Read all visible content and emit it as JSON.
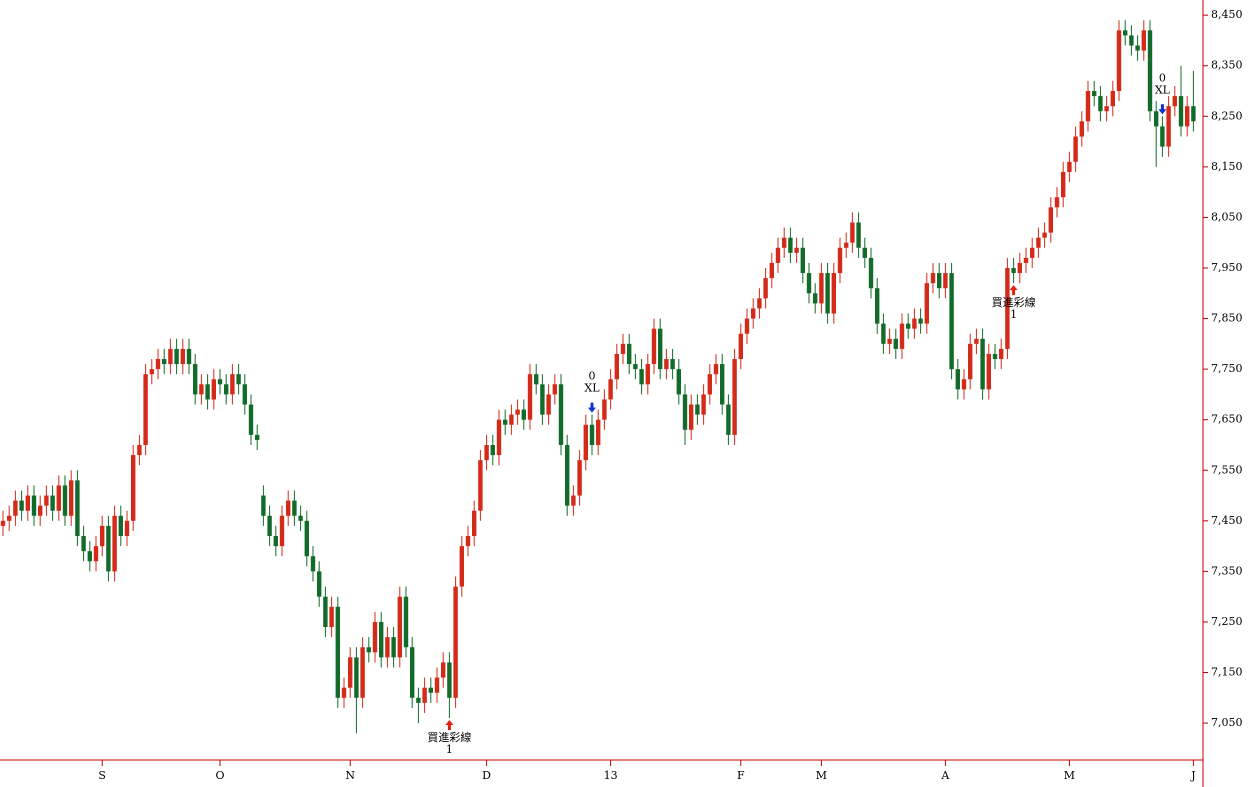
{
  "chart_data": {
    "type": "candlestick",
    "up_color": "#d42a1a",
    "down_color": "#136b2b",
    "ylim": [
      6977,
      8480
    ],
    "yticks": [
      {
        "value": 7050,
        "label": "7,050"
      },
      {
        "value": 7150,
        "label": "7,150"
      },
      {
        "value": 7250,
        "label": "7,250"
      },
      {
        "value": 7350,
        "label": "7,350"
      },
      {
        "value": 7450,
        "label": "7,450"
      },
      {
        "value": 7550,
        "label": "7,550"
      },
      {
        "value": 7650,
        "label": "7,650"
      },
      {
        "value": 7750,
        "label": "7,750"
      },
      {
        "value": 7850,
        "label": "7,850"
      },
      {
        "value": 7950,
        "label": "7,950"
      },
      {
        "value": 8050,
        "label": "8,050"
      },
      {
        "value": 8150,
        "label": "8,150"
      },
      {
        "value": 8250,
        "label": "8,250"
      },
      {
        "value": 8350,
        "label": "8,350"
      },
      {
        "value": 8450,
        "label": "8,450"
      }
    ],
    "categories": [
      null,
      null,
      null,
      null,
      null,
      null,
      null,
      null,
      null,
      null,
      null,
      null,
      null,
      null,
      null,
      null,
      "S",
      null,
      null,
      null,
      null,
      null,
      null,
      null,
      null,
      null,
      null,
      null,
      null,
      null,
      null,
      null,
      null,
      null,
      null,
      "O",
      null,
      null,
      null,
      null,
      null,
      null,
      null,
      null,
      null,
      null,
      null,
      null,
      null,
      null,
      null,
      null,
      null,
      null,
      null,
      null,
      "N",
      null,
      null,
      null,
      null,
      null,
      null,
      null,
      null,
      null,
      null,
      null,
      null,
      null,
      null,
      null,
      null,
      null,
      null,
      null,
      null,
      null,
      "D",
      null,
      null,
      null,
      null,
      null,
      null,
      null,
      null,
      null,
      null,
      null,
      null,
      null,
      null,
      null,
      null,
      null,
      null,
      null,
      "13",
      null,
      null,
      null,
      null,
      null,
      null,
      null,
      null,
      null,
      null,
      null,
      null,
      null,
      null,
      null,
      null,
      null,
      null,
      null,
      null,
      "F",
      null,
      null,
      null,
      null,
      null,
      null,
      null,
      null,
      null,
      null,
      null,
      null,
      "M",
      null,
      null,
      null,
      null,
      null,
      null,
      null,
      null,
      null,
      null,
      null,
      null,
      null,
      null,
      null,
      null,
      null,
      null,
      null,
      "A",
      null,
      null,
      null,
      null,
      null,
      null,
      null,
      null,
      null,
      null,
      null,
      null,
      null,
      null,
      null,
      null,
      null,
      null,
      null,
      "M",
      null,
      null,
      null,
      null,
      null,
      null,
      null,
      null,
      null,
      null,
      null,
      null,
      null,
      null,
      null,
      null,
      null,
      null,
      null,
      "J"
    ],
    "open": [
      7440,
      7450,
      7460,
      7490,
      7470,
      7500,
      7460,
      7480,
      7500,
      7470,
      7520,
      7460,
      7530,
      7420,
      7390,
      7370,
      7400,
      7440,
      7350,
      7460,
      7420,
      7450,
      7580,
      7600,
      7740,
      7750,
      7770,
      7760,
      7790,
      7760,
      7790,
      7760,
      7700,
      7720,
      7690,
      7730,
      7720,
      7700,
      7740,
      7720,
      7680,
      7620,
      7500,
      7460,
      7420,
      7400,
      7460,
      7490,
      7460,
      7450,
      7380,
      7350,
      7300,
      7240,
      7280,
      7100,
      7120,
      7180,
      7100,
      7200,
      7190,
      7250,
      7180,
      7220,
      7180,
      7300,
      7200,
      7100,
      7090,
      7120,
      7110,
      7140,
      7170,
      7100,
      7320,
      7400,
      7420,
      7470,
      7570,
      7600,
      7580,
      7650,
      7640,
      7660,
      7670,
      7650,
      7740,
      7720,
      7660,
      7700,
      7720,
      7600,
      7480,
      7500,
      7570,
      7640,
      7600,
      7650,
      7690,
      7730,
      7780,
      7800,
      7760,
      7750,
      7720,
      7760,
      7830,
      7750,
      7770,
      7750,
      7700,
      7630,
      7680,
      7660,
      7700,
      7740,
      7760,
      7680,
      7620,
      7770,
      7820,
      7850,
      7870,
      7890,
      7930,
      7960,
      7990,
      8010,
      7980,
      7990,
      7940,
      7900,
      7880,
      7940,
      7860,
      7940,
      7990,
      8000,
      8040,
      7990,
      7970,
      7910,
      7840,
      7800,
      7810,
      7790,
      7840,
      7830,
      7850,
      7840,
      7920,
      7940,
      7910,
      7940,
      7750,
      7710,
      7730,
      7800,
      7810,
      7710,
      7780,
      7770,
      7790,
      7950,
      7940,
      7960,
      7970,
      7990,
      8010,
      8020,
      8070,
      8090,
      8140,
      8160,
      8210,
      8240,
      8300,
      8290,
      8260,
      8270,
      8300,
      8420,
      8410,
      8390,
      8380,
      8420,
      8260,
      8230,
      8190,
      8270,
      8290,
      8230,
      8270
    ],
    "high": [
      7470,
      7480,
      7510,
      7510,
      7520,
      7520,
      7500,
      7520,
      7520,
      7540,
      7540,
      7550,
      7550,
      7440,
      7410,
      7420,
      7460,
      7460,
      7480,
      7480,
      7470,
      7600,
      7620,
      7760,
      7770,
      7790,
      7790,
      7810,
      7810,
      7810,
      7810,
      7780,
      7740,
      7740,
      7750,
      7750,
      7740,
      7760,
      7760,
      7740,
      7700,
      7640,
      7520,
      7480,
      7440,
      7480,
      7510,
      7510,
      7480,
      7470,
      7400,
      7370,
      7320,
      7300,
      7300,
      7140,
      7200,
      7200,
      7220,
      7220,
      7270,
      7270,
      7240,
      7240,
      7320,
      7320,
      7220,
      7120,
      7140,
      7140,
      7160,
      7190,
      7190,
      7340,
      7420,
      7440,
      7490,
      7590,
      7620,
      7620,
      7670,
      7670,
      7680,
      7690,
      7690,
      7760,
      7760,
      7740,
      7720,
      7740,
      7740,
      7620,
      7520,
      7590,
      7660,
      7660,
      7670,
      7710,
      7750,
      7800,
      7820,
      7820,
      7780,
      7770,
      7780,
      7850,
      7850,
      7790,
      7790,
      7770,
      7720,
      7700,
      7700,
      7720,
      7760,
      7780,
      7780,
      7700,
      7790,
      7840,
      7870,
      7890,
      7910,
      7950,
      7980,
      8010,
      8030,
      8030,
      8010,
      8010,
      7960,
      7920,
      7960,
      7960,
      7960,
      8010,
      8020,
      8060,
      8060,
      8010,
      7990,
      7930,
      7860,
      7830,
      7830,
      7860,
      7860,
      7870,
      7870,
      7940,
      7960,
      7960,
      7960,
      7960,
      7770,
      7750,
      7820,
      7830,
      7830,
      7800,
      7800,
      7810,
      7970,
      7970,
      7980,
      7990,
      8010,
      8030,
      8040,
      8090,
      8110,
      8160,
      8180,
      8230,
      8260,
      8320,
      8320,
      8310,
      8290,
      8320,
      8440,
      8440,
      8430,
      8410,
      8440,
      8440,
      8280,
      8250,
      8290,
      8310,
      8350,
      8290,
      8340
    ],
    "low": [
      7420,
      7430,
      7440,
      7450,
      7450,
      7440,
      7440,
      7460,
      7450,
      7450,
      7440,
      7440,
      7400,
      7370,
      7350,
      7350,
      7380,
      7330,
      7330,
      7400,
      7400,
      7430,
      7560,
      7580,
      7720,
      7730,
      7740,
      7740,
      7740,
      7740,
      7740,
      7680,
      7680,
      7670,
      7670,
      7700,
      7680,
      7680,
      7700,
      7660,
      7600,
      7590,
      7440,
      7400,
      7380,
      7380,
      7440,
      7440,
      7430,
      7360,
      7330,
      7280,
      7220,
      7220,
      7080,
      7080,
      7100,
      7030,
      7080,
      7170,
      7170,
      7160,
      7160,
      7160,
      7160,
      7180,
      7080,
      7050,
      7070,
      7090,
      7090,
      7120,
      7060,
      7080,
      7300,
      7380,
      7400,
      7450,
      7550,
      7560,
      7560,
      7620,
      7620,
      7640,
      7630,
      7630,
      7700,
      7640,
      7640,
      7680,
      7580,
      7460,
      7460,
      7480,
      7550,
      7580,
      7580,
      7630,
      7670,
      7710,
      7760,
      7740,
      7730,
      7700,
      7700,
      7740,
      7730,
      7730,
      7730,
      7680,
      7600,
      7610,
      7640,
      7640,
      7680,
      7720,
      7660,
      7600,
      7600,
      7750,
      7800,
      7830,
      7850,
      7870,
      7910,
      7940,
      7970,
      7960,
      7960,
      7920,
      7880,
      7860,
      7860,
      7840,
      7840,
      7920,
      7970,
      7980,
      7970,
      7950,
      7890,
      7820,
      7780,
      7780,
      7770,
      7770,
      7810,
      7810,
      7820,
      7820,
      7900,
      7890,
      7890,
      7730,
      7690,
      7690,
      7710,
      7780,
      7690,
      7690,
      7750,
      7750,
      7770,
      7920,
      7920,
      7940,
      7950,
      7970,
      7990,
      8000,
      8050,
      8070,
      8120,
      8140,
      8190,
      8220,
      8270,
      8240,
      8240,
      8250,
      8280,
      8390,
      8370,
      8360,
      8360,
      8240,
      8150,
      8170,
      8170,
      8250,
      8210,
      8210,
      8220
    ],
    "close": [
      7450,
      7460,
      7490,
      7470,
      7500,
      7460,
      7480,
      7500,
      7470,
      7520,
      7460,
      7530,
      7420,
      7390,
      7370,
      7400,
      7440,
      7350,
      7460,
      7420,
      7450,
      7580,
      7600,
      7740,
      7750,
      7770,
      7760,
      7790,
      7760,
      7790,
      7760,
      7700,
      7720,
      7690,
      7730,
      7720,
      7700,
      7740,
      7720,
      7680,
      7620,
      7610,
      7460,
      7420,
      7400,
      7460,
      7490,
      7460,
      7450,
      7380,
      7350,
      7300,
      7240,
      7280,
      7100,
      7120,
      7180,
      7100,
      7200,
      7190,
      7250,
      7180,
      7220,
      7180,
      7300,
      7200,
      7100,
      7090,
      7120,
      7110,
      7140,
      7170,
      7100,
      7320,
      7400,
      7420,
      7470,
      7570,
      7600,
      7580,
      7650,
      7640,
      7660,
      7670,
      7650,
      7740,
      7720,
      7660,
      7700,
      7720,
      7600,
      7480,
      7500,
      7570,
      7640,
      7600,
      7650,
      7690,
      7730,
      7780,
      7800,
      7760,
      7750,
      7720,
      7760,
      7830,
      7750,
      7770,
      7750,
      7700,
      7630,
      7680,
      7660,
      7700,
      7740,
      7760,
      7680,
      7620,
      7770,
      7820,
      7850,
      7870,
      7890,
      7930,
      7960,
      7990,
      8010,
      7980,
      7990,
      7940,
      7900,
      7880,
      7940,
      7860,
      7940,
      7990,
      8000,
      8040,
      7990,
      7970,
      7910,
      7840,
      7800,
      7810,
      7790,
      7840,
      7830,
      7850,
      7840,
      7920,
      7940,
      7910,
      7940,
      7750,
      7710,
      7730,
      7800,
      7810,
      7710,
      7780,
      7770,
      7790,
      7950,
      7940,
      7960,
      7970,
      7990,
      8010,
      8020,
      8070,
      8090,
      8140,
      8160,
      8210,
      8240,
      8300,
      8290,
      8260,
      8270,
      8300,
      8420,
      8410,
      8390,
      8380,
      8420,
      8260,
      8230,
      8190,
      8270,
      8290,
      8230,
      8270,
      8240
    ],
    "annotations": [
      {
        "x": 95,
        "lines": [
          "0",
          "XL"
        ],
        "direction": "down",
        "color": "#1030d0"
      },
      {
        "x": 72,
        "lines": [
          "買進彩線",
          "1"
        ],
        "direction": "up",
        "color": "#e02010"
      },
      {
        "x": 163,
        "lines": [
          "買進彩線",
          "1"
        ],
        "direction": "up",
        "color": "#e02010"
      },
      {
        "x": 187,
        "lines": [
          "0",
          "XL"
        ],
        "direction": "down",
        "color": "#1030d0"
      }
    ]
  }
}
